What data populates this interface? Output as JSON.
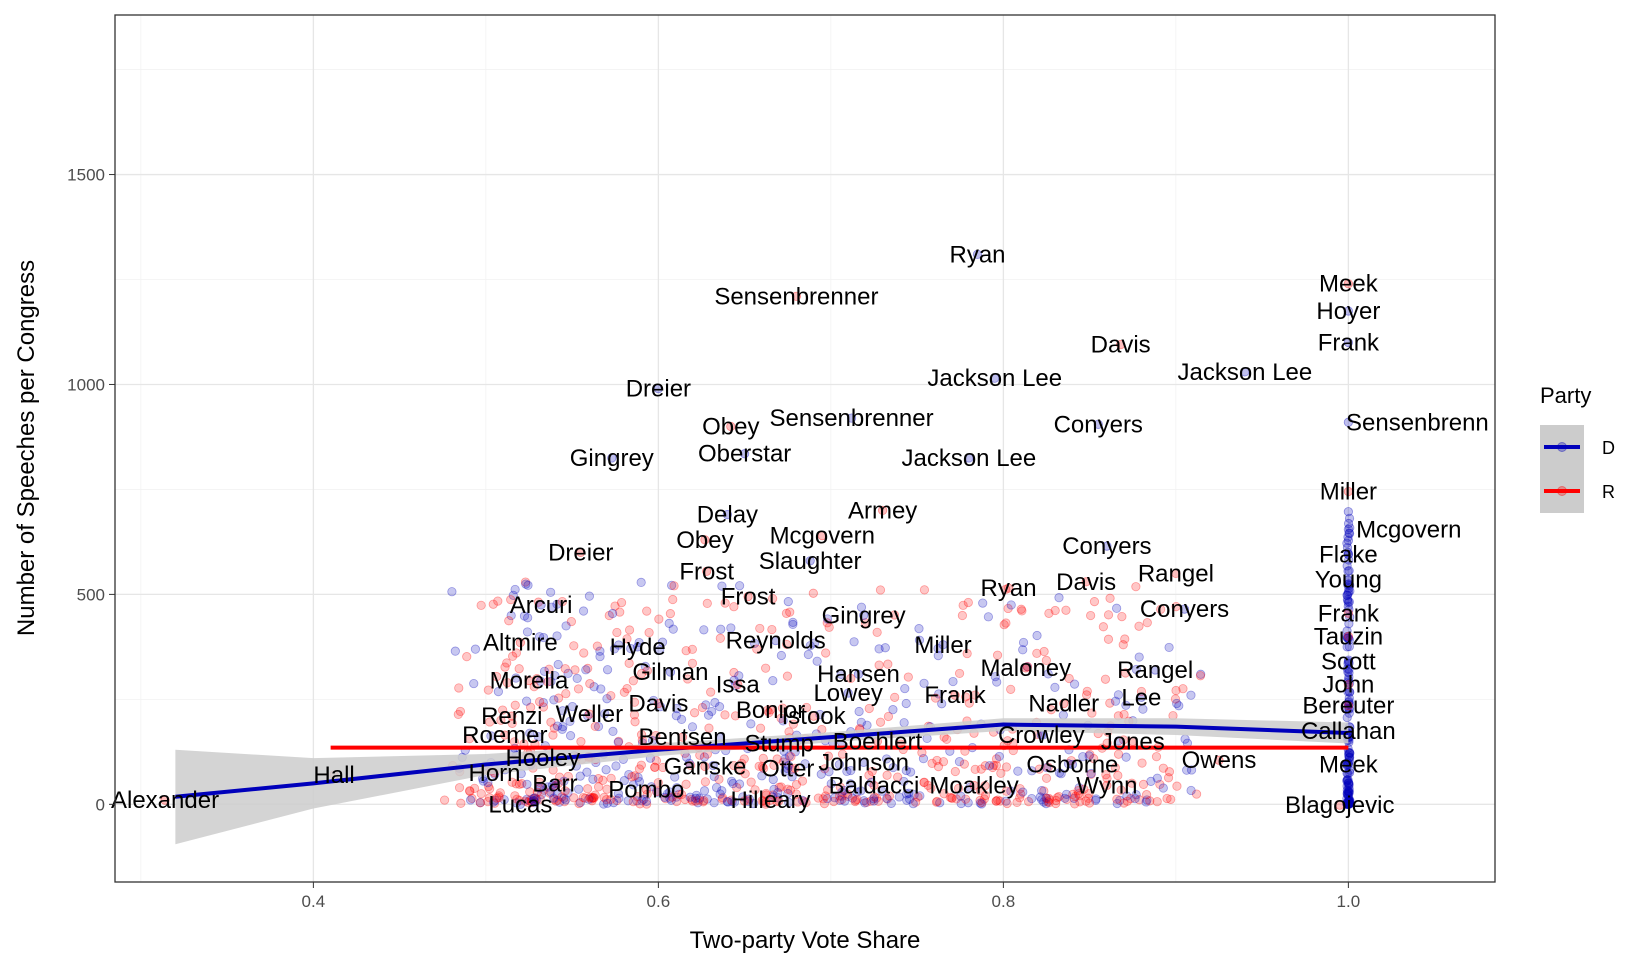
{
  "chart_data": {
    "type": "scatter",
    "xlabel": "Two-party Vote Share",
    "ylabel": "Number of Speeches per Congress",
    "xlim": [
      0.285,
      1.085
    ],
    "ylim": [
      -185,
      1880
    ],
    "x_major_ticks": [
      0.4,
      0.6,
      0.8,
      1.0
    ],
    "x_tick_labels": [
      "0.4",
      "0.6",
      "0.8",
      "1.0"
    ],
    "x_minor_ticks": [
      0.3,
      0.5,
      0.7,
      0.9
    ],
    "y_major_ticks": [
      0,
      500,
      1000,
      1500
    ],
    "y_tick_labels": [
      "0",
      "500",
      "1000",
      "1500"
    ],
    "y_minor_ticks": [
      250,
      750,
      1250,
      1750
    ],
    "colors": {
      "D": "#0000bb",
      "R": "#ff0000",
      "band": "#cccccc",
      "panel_border": "#333333"
    },
    "legend": {
      "title": "Party",
      "position": "right",
      "entries": [
        {
          "key": "D",
          "label": "D"
        },
        {
          "key": "R",
          "label": "R"
        }
      ]
    },
    "fits": [
      {
        "party": "D",
        "x": [
          0.32,
          0.4,
          0.5,
          0.6,
          0.7,
          0.8,
          0.9,
          1.0
        ],
        "y": [
          18,
          50,
          95,
          130,
          160,
          190,
          185,
          170
        ],
        "ci_upper": [
          130,
          110,
          120,
          145,
          172,
          205,
          205,
          195
        ],
        "ci_lower": [
          -95,
          -10,
          70,
          115,
          148,
          175,
          165,
          145
        ]
      },
      {
        "party": "R",
        "x": [
          0.41,
          1.0
        ],
        "y": [
          135,
          135
        ]
      }
    ],
    "labels": [
      {
        "text": "Ryan",
        "x": 0.785,
        "y": 1310
      },
      {
        "text": "Sensenbrenner",
        "x": 0.68,
        "y": 1210
      },
      {
        "text": "Meek",
        "x": 1.0,
        "y": 1240
      },
      {
        "text": "Hoyer",
        "x": 1.0,
        "y": 1175
      },
      {
        "text": "Frank",
        "x": 1.0,
        "y": 1100
      },
      {
        "text": "Davis",
        "x": 0.868,
        "y": 1095
      },
      {
        "text": "Jackson Lee",
        "x": 0.795,
        "y": 1015
      },
      {
        "text": "Jackson Lee",
        "x": 0.94,
        "y": 1030
      },
      {
        "text": "Dreier",
        "x": 0.6,
        "y": 990
      },
      {
        "text": "Sensenbrenner",
        "x": 0.712,
        "y": 920
      },
      {
        "text": "Sensenbrenn",
        "x": 1.04,
        "y": 910
      },
      {
        "text": "Conyers",
        "x": 0.855,
        "y": 905
      },
      {
        "text": "Obey",
        "x": 0.642,
        "y": 900
      },
      {
        "text": "Oberstar",
        "x": 0.65,
        "y": 835
      },
      {
        "text": "Jackson Lee",
        "x": 0.78,
        "y": 825
      },
      {
        "text": "Gingrey",
        "x": 0.573,
        "y": 825
      },
      {
        "text": "Miller",
        "x": 1.0,
        "y": 745
      },
      {
        "text": "Delay",
        "x": 0.64,
        "y": 690
      },
      {
        "text": "Armey",
        "x": 0.73,
        "y": 700
      },
      {
        "text": "Mcgovern",
        "x": 1.035,
        "y": 655
      },
      {
        "text": "Obey",
        "x": 0.627,
        "y": 630
      },
      {
        "text": "Mcgovern",
        "x": 0.695,
        "y": 640
      },
      {
        "text": "Conyers",
        "x": 0.86,
        "y": 615
      },
      {
        "text": "Dreier",
        "x": 0.555,
        "y": 600
      },
      {
        "text": "Flake",
        "x": 1.0,
        "y": 595
      },
      {
        "text": "Slaughter",
        "x": 0.688,
        "y": 580
      },
      {
        "text": "Rangel",
        "x": 0.9,
        "y": 550
      },
      {
        "text": "Frost",
        "x": 0.628,
        "y": 555
      },
      {
        "text": "Young",
        "x": 1.0,
        "y": 535
      },
      {
        "text": "Davis",
        "x": 0.848,
        "y": 530
      },
      {
        "text": "Ryan",
        "x": 0.803,
        "y": 515
      },
      {
        "text": "Frost",
        "x": 0.652,
        "y": 495
      },
      {
        "text": "Arcuri",
        "x": 0.532,
        "y": 475
      },
      {
        "text": "Conyers",
        "x": 0.905,
        "y": 465
      },
      {
        "text": "Gingrey",
        "x": 0.719,
        "y": 450
      },
      {
        "text": "Frank",
        "x": 1.0,
        "y": 455
      },
      {
        "text": "Altmire",
        "x": 0.52,
        "y": 385
      },
      {
        "text": "Hyde",
        "x": 0.588,
        "y": 375
      },
      {
        "text": "Reynolds",
        "x": 0.668,
        "y": 390
      },
      {
        "text": "Miller",
        "x": 0.765,
        "y": 380
      },
      {
        "text": "Tauzin",
        "x": 1.0,
        "y": 400
      },
      {
        "text": "Gilman",
        "x": 0.607,
        "y": 315
      },
      {
        "text": "Hansen",
        "x": 0.716,
        "y": 310
      },
      {
        "text": "Maloney",
        "x": 0.813,
        "y": 325
      },
      {
        "text": "Rangel",
        "x": 0.888,
        "y": 320
      },
      {
        "text": "Scott",
        "x": 1.0,
        "y": 340
      },
      {
        "text": "Morella",
        "x": 0.525,
        "y": 295
      },
      {
        "text": "Issa",
        "x": 0.646,
        "y": 285
      },
      {
        "text": "John",
        "x": 1.0,
        "y": 285
      },
      {
        "text": "Lowey",
        "x": 0.71,
        "y": 265
      },
      {
        "text": "Frank",
        "x": 0.772,
        "y": 260
      },
      {
        "text": "Lee",
        "x": 0.88,
        "y": 255
      },
      {
        "text": "Davis",
        "x": 0.6,
        "y": 240
      },
      {
        "text": "Bonior",
        "x": 0.665,
        "y": 225
      },
      {
        "text": "Nadler",
        "x": 0.835,
        "y": 240
      },
      {
        "text": "Bereuter",
        "x": 1.0,
        "y": 235
      },
      {
        "text": "Renzi",
        "x": 0.515,
        "y": 210
      },
      {
        "text": "Weller",
        "x": 0.56,
        "y": 215
      },
      {
        "text": "Istook",
        "x": 0.69,
        "y": 210
      },
      {
        "text": "Callahan",
        "x": 1.0,
        "y": 175
      },
      {
        "text": "Roemer",
        "x": 0.511,
        "y": 165
      },
      {
        "text": "Bentsen",
        "x": 0.614,
        "y": 160
      },
      {
        "text": "Crowley",
        "x": 0.822,
        "y": 165
      },
      {
        "text": "Boehlert",
        "x": 0.727,
        "y": 150
      },
      {
        "text": "Jones",
        "x": 0.875,
        "y": 150
      },
      {
        "text": "Stump",
        "x": 0.67,
        "y": 145
      },
      {
        "text": "Hooley",
        "x": 0.533,
        "y": 110
      },
      {
        "text": "Johnson",
        "x": 0.719,
        "y": 100
      },
      {
        "text": "Owens",
        "x": 0.925,
        "y": 105
      },
      {
        "text": "Osborne",
        "x": 0.84,
        "y": 95
      },
      {
        "text": "Ganske",
        "x": 0.627,
        "y": 90
      },
      {
        "text": "Otter",
        "x": 0.675,
        "y": 85
      },
      {
        "text": "Meek",
        "x": 1.0,
        "y": 95
      },
      {
        "text": "Hall",
        "x": 0.412,
        "y": 70
      },
      {
        "text": "Horn",
        "x": 0.505,
        "y": 75
      },
      {
        "text": "Barr",
        "x": 0.54,
        "y": 50
      },
      {
        "text": "Baldacci",
        "x": 0.725,
        "y": 45
      },
      {
        "text": "Moakley",
        "x": 0.783,
        "y": 45
      },
      {
        "text": "Wynn",
        "x": 0.86,
        "y": 45
      },
      {
        "text": "Pombo",
        "x": 0.593,
        "y": 35
      },
      {
        "text": "Alexander",
        "x": 0.314,
        "y": 10
      },
      {
        "text": "Hilleary",
        "x": 0.665,
        "y": 10
      },
      {
        "text": "Lucas",
        "x": 0.52,
        "y": 0
      },
      {
        "text": "Blagojevic",
        "x": 0.995,
        "y": -2
      }
    ]
  }
}
